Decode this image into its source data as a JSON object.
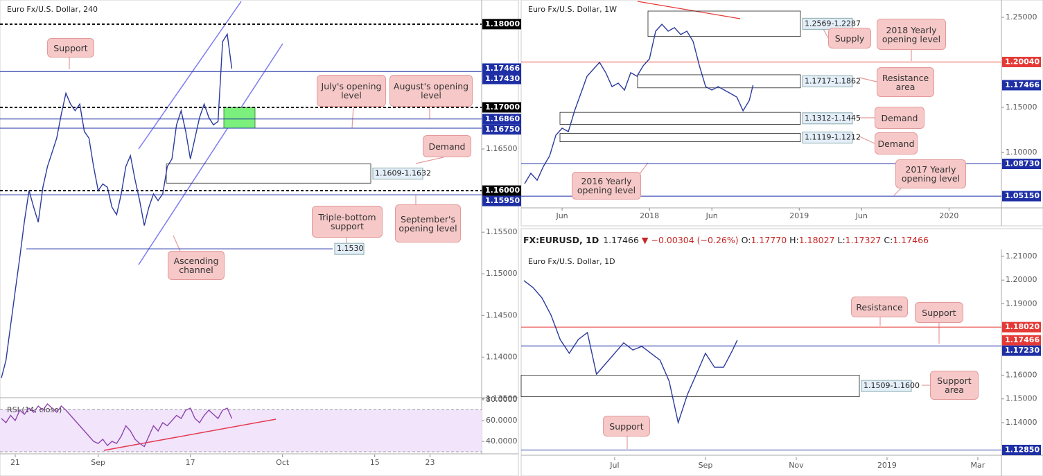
{
  "chart_data": [
    {
      "type": "line",
      "title": "Euro Fx/U.S. Dollar, 240",
      "color": "#2b3a9c",
      "x": [
        -1.5,
        -1,
        -0.5,
        0,
        0.5,
        1,
        1.5,
        2,
        2.5,
        3,
        3.5,
        4,
        4.5,
        5,
        5.5,
        6,
        6.5,
        7,
        7.5,
        8,
        8.5,
        9,
        9.5,
        10,
        10.5,
        11,
        11.5,
        12,
        12.5,
        13,
        13.5,
        14,
        14.5,
        15,
        15.5,
        16,
        16.5,
        17,
        17.5,
        18,
        18.5,
        19,
        19.5,
        20,
        20.5,
        21,
        21.5,
        22,
        22.5,
        23,
        23.5
      ],
      "values": [
        1.1375,
        1.1396,
        1.1438,
        1.1479,
        1.152,
        1.1563,
        1.16,
        1.158,
        1.1562,
        1.1604,
        1.1629,
        1.1646,
        1.1663,
        1.1692,
        1.1717,
        1.1704,
        1.1696,
        1.1704,
        1.1671,
        1.1663,
        1.1629,
        1.16,
        1.1608,
        1.1604,
        1.158,
        1.1571,
        1.1596,
        1.1629,
        1.1642,
        1.1613,
        1.1588,
        1.1558,
        1.158,
        1.1596,
        1.1588,
        1.1596,
        1.1629,
        1.1638,
        1.1679,
        1.1696,
        1.1671,
        1.1638,
        1.1663,
        1.1688,
        1.1704,
        1.1688,
        1.1679,
        1.1683,
        1.1779,
        1.1788,
        1.17466
      ],
      "xlim": [
        -1.65,
        50.6
      ],
      "ylim": [
        1.1352,
        1.1829
      ],
      "xticks": [
        {
          "value": 0,
          "label": "21"
        },
        {
          "value": 9,
          "label": "Sep"
        },
        {
          "value": 19,
          "label": "17"
        },
        {
          "value": 29,
          "label": "Oct"
        },
        {
          "value": 39,
          "label": "15"
        },
        {
          "value": 45,
          "label": "23"
        }
      ],
      "yticks": [
        {
          "value": 1.165,
          "label": "1.16500"
        },
        {
          "value": 1.155,
          "label": "1.15500"
        },
        {
          "value": 1.15,
          "label": "1.15000"
        },
        {
          "value": 1.145,
          "label": "1.14500"
        },
        {
          "value": 1.14,
          "label": "1.14000"
        },
        {
          "value": 1.135,
          "label": "1.13500"
        }
      ],
      "levels": [
        {
          "value": 1.18,
          "label": "1.18000",
          "color": "#000000",
          "style": "dashed"
        },
        {
          "value": 1.17466,
          "label": "1.17466",
          "color": "#1e2fa6",
          "style": "none"
        },
        {
          "value": 1.1743,
          "label": "1.17430",
          "color": "#1e2fa6",
          "style": "solid"
        },
        {
          "value": 1.17,
          "label": "1.17000",
          "color": "#000000",
          "style": "dashed"
        },
        {
          "value": 1.1686,
          "label": "1.16860",
          "color": "#1e2fa6",
          "style": "solid"
        },
        {
          "value": 1.1675,
          "label": "1.16750",
          "color": "#1e2fa6",
          "style": "solid"
        },
        {
          "value": 1.16,
          "label": "1.16000",
          "color": "#000000",
          "style": "dashed"
        },
        {
          "value": 1.1595,
          "label": "1.15950",
          "color": "#1e2fa6",
          "style": "solid"
        },
        {
          "value": 1.153,
          "label": "1.1530",
          "color": "#1e2fa6",
          "style": "solid"
        }
      ],
      "zones": [
        {
          "low": 1.1609,
          "high": 1.1632,
          "label": "1.1609-1.1632",
          "color": "none"
        },
        {
          "low": 1.1675,
          "high": 1.17,
          "color": "#7cf07c"
        }
      ],
      "annotations": [
        "Support",
        "July's opening level",
        "August's opening level",
        "Demand",
        "Triple-bottom support",
        "September's opening level",
        "Ascending channel"
      ],
      "rsi": {
        "label": "RSI (14, close)",
        "color": "#8e44ad",
        "ylim": [
          28,
          81.3
        ],
        "yticks": [
          {
            "value": 80,
            "label": "80.0000"
          },
          {
            "value": 60,
            "label": "60.0000"
          },
          {
            "value": 40,
            "label": "40.0000"
          }
        ],
        "values": [
          62,
          58,
          65,
          60,
          70,
          66,
          72,
          68,
          74,
          70,
          76,
          72,
          68,
          74,
          70,
          65,
          60,
          55,
          50,
          45,
          40,
          38,
          42,
          36,
          40,
          38,
          45,
          55,
          50,
          42,
          38,
          35,
          45,
          55,
          50,
          58,
          55,
          60,
          65,
          62,
          70,
          72,
          62,
          58,
          65,
          70,
          66,
          62,
          70,
          72,
          62
        ]
      }
    },
    {
      "type": "line",
      "title": "Euro Fx/U.S. Dollar, 1W",
      "color": "#2b3a9c",
      "x": [
        2,
        2.5,
        3,
        3.5,
        4,
        4.5,
        5,
        5.5,
        6,
        6.5,
        7,
        7.5,
        8,
        8.5,
        9,
        9.5,
        10,
        10.5,
        11,
        11.5,
        12,
        12.5,
        13,
        13.5,
        14,
        14.5,
        15,
        15.5,
        16,
        16.5,
        17,
        17.5,
        18,
        18.5,
        19,
        19.5,
        20,
        20.3
      ],
      "values": [
        1.0654,
        1.0769,
        1.0692,
        1.0846,
        1.0962,
        1.1192,
        1.1269,
        1.1231,
        1.1462,
        1.1654,
        1.1846,
        1.1923,
        1.2,
        1.1885,
        1.1731,
        1.1769,
        1.1692,
        1.1885,
        1.1846,
        1.1962,
        1.2038,
        1.2346,
        1.2423,
        1.2346,
        1.2385,
        1.2308,
        1.2346,
        1.2231,
        1.1962,
        1.1731,
        1.1692,
        1.1731,
        1.1692,
        1.1654,
        1.1615,
        1.1462,
        1.1577,
        1.17466
      ],
      "xlim": [
        1.72,
        40.2
      ],
      "ylim": [
        1.0385,
        1.2692
      ],
      "xticks": [
        {
          "value": 5,
          "label": "Jun"
        },
        {
          "value": 12,
          "label": "2018"
        },
        {
          "value": 17,
          "label": "Jun"
        },
        {
          "value": 24,
          "label": "2019"
        },
        {
          "value": 29,
          "label": "Jun"
        },
        {
          "value": 36,
          "label": "2020"
        }
      ],
      "yticks": [
        {
          "value": 1.25,
          "label": "1.25000"
        },
        {
          "value": 1.15,
          "label": "1.15000"
        },
        {
          "value": 1.1,
          "label": "1.10000"
        }
      ],
      "levels": [
        {
          "value": 1.2004,
          "label": "1.20040",
          "color": "#e53935",
          "style": "solid"
        },
        {
          "value": 1.17466,
          "label": "1.17466",
          "color": "#1e2fa6",
          "style": "none"
        },
        {
          "value": 1.0873,
          "label": "1.08730",
          "color": "#1e2fa6",
          "style": "solid"
        },
        {
          "value": 1.0515,
          "label": "1.05150",
          "color": "#1e2fa6",
          "style": "solid"
        }
      ],
      "zones": [
        {
          "low": 1.2287,
          "high": 1.2569,
          "label": "1.2569-1.2287",
          "color": "none"
        },
        {
          "low": 1.1717,
          "high": 1.1862,
          "label": "1.1717-1.1862",
          "color": "none"
        },
        {
          "low": 1.1312,
          "high": 1.1445,
          "label": "1.1312-1.1445",
          "color": "none"
        },
        {
          "low": 1.1119,
          "high": 1.1212,
          "label": "1.1119-1.1212",
          "color": "none"
        }
      ],
      "annotations": [
        "Supply",
        "2018 Yearly opening level",
        "Resistance area",
        "Demand",
        "Demand",
        "2016 Yearly opening level",
        "2017 Yearly opening level"
      ]
    },
    {
      "type": "line",
      "title": "Euro Fx/U.S. Dollar, 1D",
      "color": "#2b3a9c",
      "header": {
        "symbol": "FX:EURUSD, 1D",
        "last": "1.17466",
        "arrow": "▼",
        "change": "−0.00304 (−0.26%)",
        "quote": [
          {
            "key": "O:",
            "value": "1.17770"
          },
          {
            "key": "H:",
            "value": "1.18027"
          },
          {
            "key": "L:",
            "value": "1.17327"
          },
          {
            "key": "C:",
            "value": "1.17466"
          }
        ]
      },
      "x": [
        4,
        4.2,
        4.4,
        4.6,
        4.8,
        5,
        5.2,
        5.4,
        5.6,
        5.8,
        6,
        6.2,
        6.4,
        6.6,
        6.8,
        7,
        7.2,
        7.4,
        7.6,
        7.8,
        8,
        8.2,
        8.4,
        8.6,
        8.7
      ],
      "values": [
        1.1998,
        1.1969,
        1.1925,
        1.1852,
        1.175,
        1.1692,
        1.175,
        1.1779,
        1.1604,
        1.1648,
        1.1692,
        1.1736,
        1.1706,
        1.1721,
        1.1692,
        1.1663,
        1.1575,
        1.14,
        1.1517,
        1.1604,
        1.1692,
        1.1633,
        1.1633,
        1.1706,
        1.17466
      ],
      "xlim": [
        3.94,
        14.52
      ],
      "ylim": [
        1.1263,
        1.2129
      ],
      "xticks": [
        {
          "value": 6,
          "label": "Jul"
        },
        {
          "value": 8,
          "label": "Sep"
        },
        {
          "value": 10,
          "label": "Nov"
        },
        {
          "value": 12,
          "label": "2019"
        },
        {
          "value": 14,
          "label": "Mar"
        }
      ],
      "yticks": [
        {
          "value": 1.21,
          "label": "1.21000"
        },
        {
          "value": 1.2,
          "label": "1.20000"
        },
        {
          "value": 1.19,
          "label": "1.19000"
        },
        {
          "value": 1.16,
          "label": "1.16000"
        },
        {
          "value": 1.15,
          "label": "1.15000"
        },
        {
          "value": 1.14,
          "label": "1.14000"
        }
      ],
      "levels": [
        {
          "value": 1.1802,
          "label": "1.18020",
          "color": "#e53935",
          "style": "solid"
        },
        {
          "value": 1.17466,
          "label": "1.17466",
          "color": "#e53935",
          "style": "none"
        },
        {
          "value": 1.1723,
          "label": "1.17230",
          "color": "#1e2fa6",
          "style": "solid"
        },
        {
          "value": 1.1285,
          "label": "1.12850",
          "color": "#1e2fa6",
          "style": "solid"
        }
      ],
      "zones": [
        {
          "low": 1.1509,
          "high": 1.16,
          "label": "1.1509-1.1600",
          "color": "none"
        }
      ],
      "annotations": [
        "Resistance",
        "Support",
        "Support area",
        "Support"
      ]
    }
  ]
}
